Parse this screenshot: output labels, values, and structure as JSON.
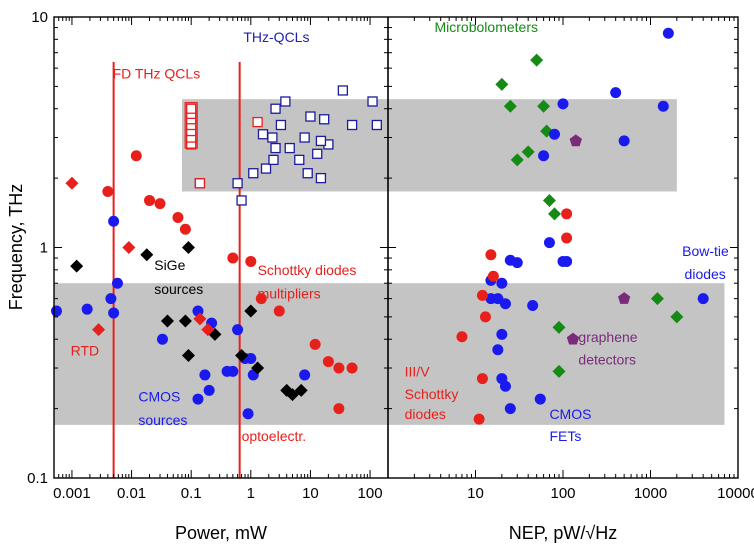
{
  "chart_data": [
    {
      "type": "scatter",
      "panel": "left",
      "xlabel": "Power, mW",
      "ylabel": "Frequency, THz",
      "xscale": "log",
      "yscale": "log",
      "xlim": [
        0.0005,
        200
      ],
      "ylim": [
        0.1,
        10
      ],
      "xtick_labels": [
        "0.001",
        "0.01",
        "0.1",
        "1",
        "10",
        "100"
      ],
      "xtick_values": [
        0.001,
        0.01,
        0.1,
        1,
        10,
        100
      ],
      "ytick_labels": [
        "0.1",
        "1",
        "10"
      ],
      "ytick_values": [
        0.1,
        1,
        10
      ],
      "shaded_regions": [
        {
          "x": [
            0.07,
            200
          ],
          "y": [
            1.75,
            4.4
          ]
        },
        {
          "x": [
            0.0005,
            200
          ],
          "y": [
            0.17,
            0.7
          ]
        }
      ],
      "vertical_lines": [
        0.005,
        0.65
      ],
      "annotations": [
        {
          "text": "THz-QCLs",
          "x": 0.75,
          "y": 7.8,
          "color": "#2020b0"
        },
        {
          "text": "FD THz QCLs",
          "x": 0.0048,
          "y": 5.4,
          "color": "#e8201c"
        },
        {
          "text": "SiGe",
          "x": 0.024,
          "y": 0.8,
          "color": "#000000"
        },
        {
          "text": "sources",
          "x": 0.024,
          "y": 0.63,
          "color": "#000000"
        },
        {
          "text": "Schottky diodes",
          "x": 1.3,
          "y": 0.76,
          "color": "#e8201c"
        },
        {
          "text": "multipliers",
          "x": 1.3,
          "y": 0.6,
          "color": "#e8201c"
        },
        {
          "text": "RTD",
          "x": 0.00095,
          "y": 0.34,
          "color": "#e8201c"
        },
        {
          "text": "CMOS",
          "x": 0.013,
          "y": 0.215,
          "color": "#1a1aee"
        },
        {
          "text": "sources",
          "x": 0.013,
          "y": 0.17,
          "color": "#1a1aee"
        },
        {
          "text": "optoelectr.",
          "x": 0.7,
          "y": 0.145,
          "color": "#e8201c"
        }
      ],
      "series": [
        {
          "marker": "open-square",
          "color": "#1c1c9c",
          "points": [
            [
              0.14,
              1.9
            ],
            [
              0.6,
              1.9
            ],
            [
              0.7,
              1.6
            ],
            [
              1.1,
              2.1
            ],
            [
              1.8,
              2.2
            ],
            [
              2.4,
              2.4
            ],
            [
              2.6,
              2.7
            ],
            [
              1.6,
              3.1
            ],
            [
              2.3,
              3.0
            ],
            [
              3.2,
              3.4
            ],
            [
              2.6,
              4.0
            ],
            [
              4.5,
              2.7
            ],
            [
              6.5,
              2.4
            ],
            [
              9,
              2.1
            ],
            [
              15,
              2.0
            ],
            [
              13,
              2.55
            ],
            [
              20,
              2.8
            ],
            [
              8,
              3.0
            ],
            [
              15,
              2.9
            ],
            [
              10,
              3.7
            ],
            [
              17,
              3.6
            ],
            [
              3.8,
              4.3
            ],
            [
              50,
              3.4
            ],
            [
              130,
              3.4
            ],
            [
              110,
              4.3
            ],
            [
              35,
              4.8
            ]
          ]
        },
        {
          "marker": "open-square",
          "color": "#e8201c",
          "points": [
            [
              0.14,
              1.9
            ],
            [
              1.3,
              3.5
            ],
            [
              0.1,
              2.8
            ],
            [
              0.1,
              3.0
            ],
            [
              0.1,
              3.2
            ],
            [
              0.1,
              3.4
            ],
            [
              0.1,
              3.6
            ],
            [
              0.1,
              3.8
            ],
            [
              0.1,
              4.0
            ]
          ]
        },
        {
          "marker": "circle",
          "color": "#1a1aee",
          "points": [
            [
              0.00055,
              0.53
            ],
            [
              0.0018,
              0.54
            ],
            [
              0.0045,
              0.6
            ],
            [
              0.005,
              0.52
            ],
            [
              0.0058,
              0.7
            ],
            [
              0.005,
              1.3
            ],
            [
              0.033,
              0.4
            ],
            [
              0.13,
              0.53
            ],
            [
              0.13,
              0.22
            ],
            [
              0.17,
              0.28
            ],
            [
              0.2,
              0.24
            ],
            [
              0.22,
              0.47
            ],
            [
              0.4,
              0.29
            ],
            [
              0.5,
              0.29
            ],
            [
              0.6,
              0.44
            ],
            [
              0.8,
              0.33
            ],
            [
              1.0,
              0.33
            ],
            [
              1.1,
              0.28
            ],
            [
              0.9,
              0.19
            ],
            [
              8,
              0.28
            ]
          ]
        },
        {
          "marker": "circle",
          "color": "#e8201c",
          "points": [
            [
              0.004,
              1.75
            ],
            [
              0.012,
              2.5
            ],
            [
              0.02,
              1.6
            ],
            [
              0.03,
              1.55
            ],
            [
              0.06,
              1.35
            ],
            [
              0.08,
              1.2
            ],
            [
              0.5,
              0.9
            ],
            [
              1.0,
              0.87
            ],
            [
              1.5,
              0.6
            ],
            [
              3,
              0.53
            ],
            [
              12,
              0.38
            ],
            [
              20,
              0.32
            ],
            [
              30,
              0.3
            ],
            [
              50,
              0.3
            ],
            [
              30,
              0.2
            ]
          ]
        },
        {
          "marker": "diamond",
          "color": "#000000",
          "points": [
            [
              0.0012,
              0.83
            ],
            [
              0.018,
              0.93
            ],
            [
              0.09,
              1.0
            ],
            [
              0.04,
              0.48
            ],
            [
              0.08,
              0.48
            ],
            [
              0.09,
              0.34
            ],
            [
              0.25,
              0.42
            ],
            [
              0.7,
              0.34
            ],
            [
              1.0,
              0.53
            ],
            [
              1.3,
              0.3
            ],
            [
              4,
              0.24
            ],
            [
              5,
              0.23
            ],
            [
              7,
              0.24
            ]
          ]
        },
        {
          "marker": "diamond",
          "color": "#e8201c",
          "points": [
            [
              0.001,
              1.9
            ],
            [
              0.009,
              1.0
            ],
            [
              0.0028,
              0.44
            ],
            [
              0.14,
              0.49
            ],
            [
              0.19,
              0.44
            ]
          ]
        }
      ]
    },
    {
      "type": "scatter",
      "panel": "right",
      "xlabel": "NEP, pW/√Hz",
      "ylabel": "",
      "xscale": "log",
      "yscale": "log",
      "xlim": [
        1,
        10000
      ],
      "ylim": [
        0.1,
        10
      ],
      "xtick_labels": [
        "10",
        "100",
        "1000",
        "10000"
      ],
      "xtick_values": [
        10,
        100,
        1000,
        10000
      ],
      "shaded_regions": [
        {
          "x": [
            1,
            2000
          ],
          "y": [
            1.75,
            4.4
          ]
        },
        {
          "x": [
            1,
            7000
          ],
          "y": [
            0.17,
            0.7
          ]
        }
      ],
      "annotations": [
        {
          "text": "Microbolometers",
          "x": 3.4,
          "y": 8.6,
          "color": "#158a15"
        },
        {
          "text": "Bow-tie",
          "x": 2300,
          "y": 0.92,
          "color": "#1a1aee"
        },
        {
          "text": "diodes",
          "x": 2450,
          "y": 0.73,
          "color": "#1a1aee"
        },
        {
          "text": "graphene",
          "x": 150,
          "y": 0.39,
          "color": "#7a2c7a"
        },
        {
          "text": "detectors",
          "x": 150,
          "y": 0.31,
          "color": "#7a2c7a"
        },
        {
          "text": "III/V",
          "x": 1.55,
          "y": 0.275,
          "color": "#e8201c"
        },
        {
          "text": "Schottky",
          "x": 1.55,
          "y": 0.22,
          "color": "#e8201c"
        },
        {
          "text": "diodes",
          "x": 1.55,
          "y": 0.18,
          "color": "#e8201c"
        },
        {
          "text": "CMOS",
          "x": 70,
          "y": 0.18,
          "color": "#1a1aee"
        },
        {
          "text": "FETs",
          "x": 70,
          "y": 0.145,
          "color": "#1a1aee"
        }
      ],
      "series": [
        {
          "marker": "diamond",
          "color": "#158a15",
          "points": [
            [
              50,
              6.5
            ],
            [
              20,
              5.1
            ],
            [
              25,
              4.1
            ],
            [
              60,
              4.1
            ],
            [
              65,
              3.2
            ],
            [
              40,
              2.6
            ],
            [
              30,
              2.4
            ],
            [
              70,
              1.6
            ],
            [
              80,
              1.4
            ],
            [
              90,
              0.45
            ],
            [
              90,
              0.29
            ],
            [
              1200,
              0.6
            ],
            [
              2000,
              0.5
            ]
          ]
        },
        {
          "marker": "circle",
          "color": "#1a1aee",
          "points": [
            [
              1600,
              8.5
            ],
            [
              400,
              4.7
            ],
            [
              1400,
              4.1
            ],
            [
              500,
              2.9
            ],
            [
              100,
              4.2
            ],
            [
              60,
              2.5
            ],
            [
              80,
              3.1
            ],
            [
              70,
              1.05
            ],
            [
              100,
              0.87
            ],
            [
              110,
              0.87
            ],
            [
              25,
              0.88
            ],
            [
              30,
              0.86
            ],
            [
              20,
              0.7
            ],
            [
              15,
              0.72
            ],
            [
              15,
              0.6
            ],
            [
              18,
              0.6
            ],
            [
              22,
              0.57
            ],
            [
              45,
              0.56
            ],
            [
              20,
              0.42
            ],
            [
              18,
              0.36
            ],
            [
              20,
              0.27
            ],
            [
              22,
              0.25
            ],
            [
              25,
              0.2
            ],
            [
              55,
              0.22
            ],
            [
              4000,
              0.6
            ]
          ]
        },
        {
          "marker": "circle",
          "color": "#e8201c",
          "points": [
            [
              110,
              1.4
            ],
            [
              110,
              1.1
            ],
            [
              15,
              0.93
            ],
            [
              16,
              0.75
            ],
            [
              12,
              0.62
            ],
            [
              13,
              0.5
            ],
            [
              7,
              0.41
            ],
            [
              12,
              0.27
            ],
            [
              11,
              0.18
            ]
          ]
        },
        {
          "marker": "pentagon",
          "color": "#7a2c7a",
          "points": [
            [
              140,
              2.9
            ],
            [
              500,
              0.6
            ],
            [
              130,
              0.4
            ]
          ]
        }
      ]
    }
  ]
}
